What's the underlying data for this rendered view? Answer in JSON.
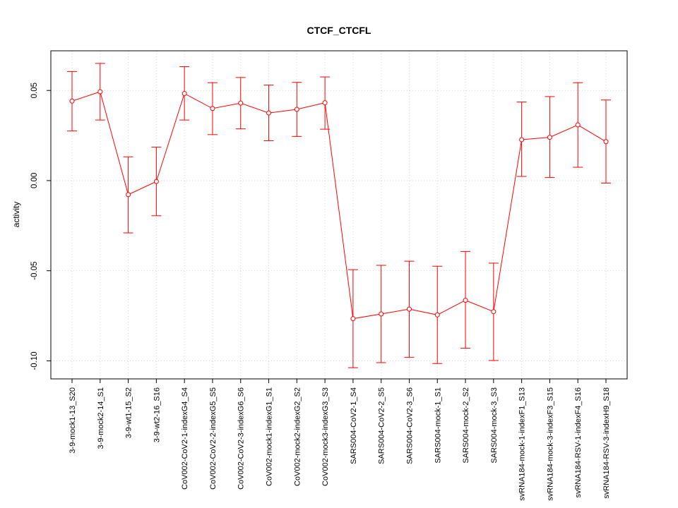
{
  "chart_data": {
    "type": "line",
    "title": "CTCF_CTCFL",
    "xlabel": "",
    "ylabel": "activity",
    "ylim": [
      -0.11,
      0.072
    ],
    "yticks": [
      -0.1,
      -0.05,
      0.0,
      0.05
    ],
    "ytick_labels": [
      "-0.10",
      "-0.05",
      "0.00",
      "0.05"
    ],
    "grid": true,
    "line_color": "#ff0000",
    "grid_color": "#d3d3d3",
    "categories": [
      "3-9-mock1-13_S20",
      "3-9-mock2-14_S1",
      "3-9-wt1-15_S2",
      "3-9-wt2-16_S16",
      "CoV002-CoV2-1-indexG4_S4",
      "CoV002-CoV2-2-indexG5_S5",
      "CoV002-CoV2-3-indexG6_S6",
      "CoV002-mock1-indexG1_S1",
      "CoV002-mock2-indexG2_S2",
      "CoV002-mock3-indexG3_S3",
      "SARS004-CoV2-1_S4",
      "SARS004-CoV2-2_S5",
      "SARS004-CoV2-3_S6",
      "SARS004-mock-1_S1",
      "SARS004-mock-2_S2",
      "SARS004-mock-3_S3",
      "svRNA184-mock-1-indexF1_S13",
      "svRNA184-mock-3-indexF3_S15",
      "svRNA184-RSV-1-indexF4_S16",
      "svRNA184-RSV-3-indexH9_S18"
    ],
    "values": [
      0.0441,
      0.0493,
      -0.0078,
      -0.0005,
      0.0483,
      0.04,
      0.043,
      0.0375,
      0.0395,
      0.0432,
      -0.0766,
      -0.074,
      -0.0713,
      -0.0745,
      -0.0664,
      -0.0727,
      0.0227,
      0.024,
      0.0309,
      0.0216
    ],
    "upper": [
      0.0605,
      0.065,
      0.0132,
      0.0186,
      0.0632,
      0.0543,
      0.0572,
      0.053,
      0.0545,
      0.0575,
      -0.0494,
      -0.047,
      -0.0447,
      -0.0475,
      -0.0393,
      -0.0458,
      0.0436,
      0.0466,
      0.0543,
      0.0447
    ],
    "lower": [
      0.0275,
      0.0336,
      -0.029,
      -0.0195,
      0.0336,
      0.0255,
      0.0287,
      0.0221,
      0.0245,
      0.0285,
      -0.1038,
      -0.101,
      -0.098,
      -0.1015,
      -0.093,
      -0.0998,
      0.0023,
      0.0017,
      0.0074,
      -0.0014
    ]
  }
}
